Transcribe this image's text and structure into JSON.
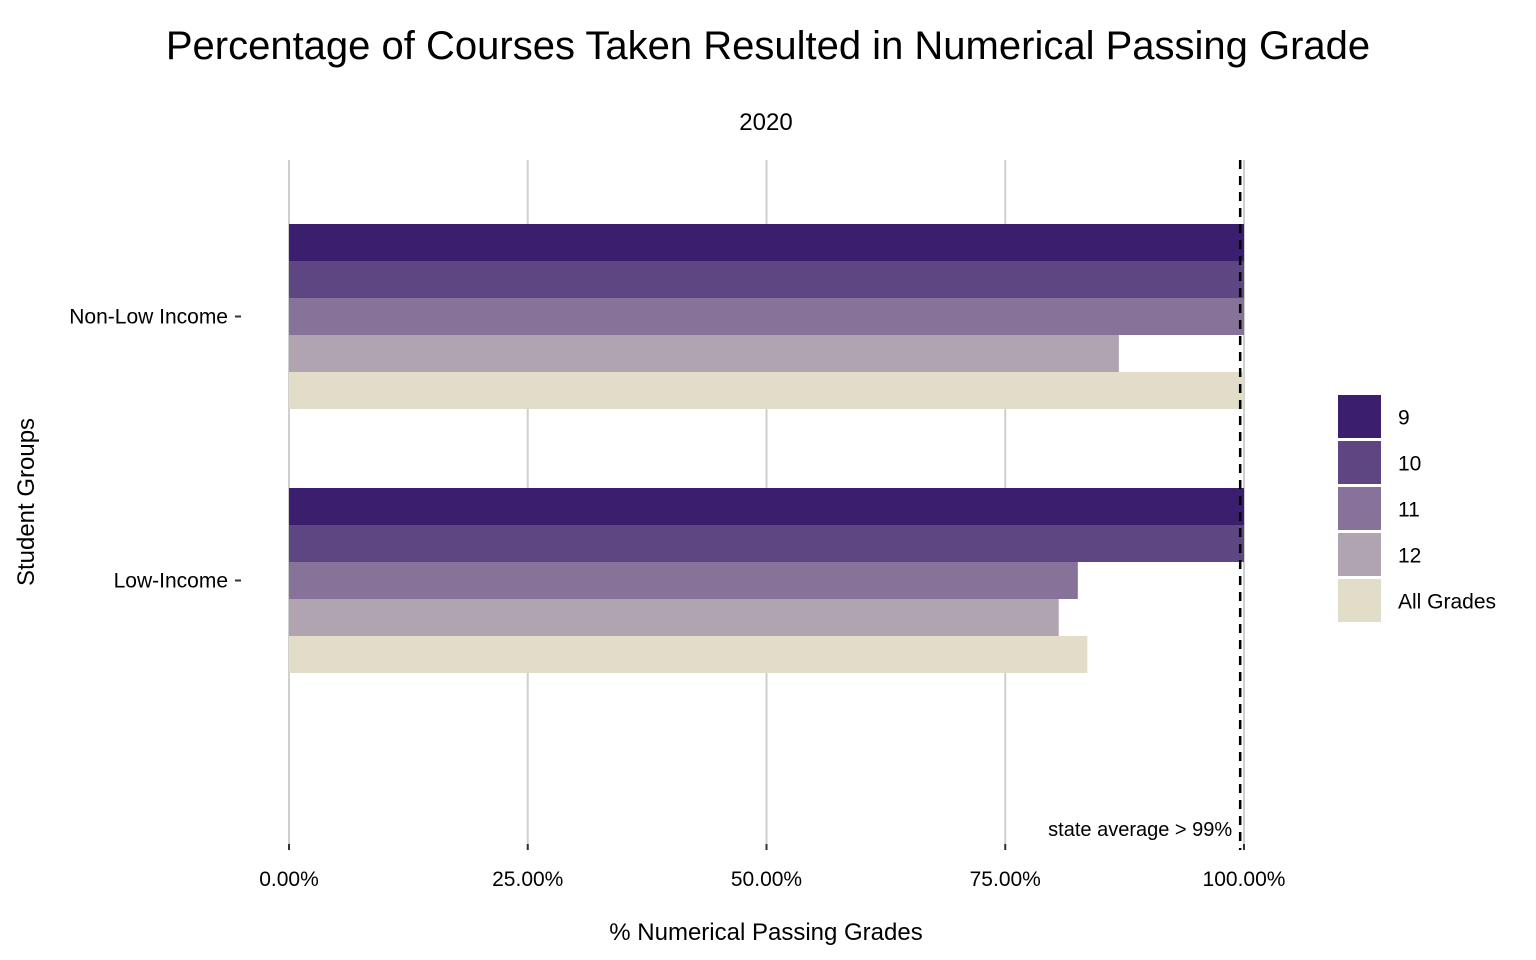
{
  "chart_data": {
    "type": "bar",
    "orientation": "horizontal",
    "title": "Percentage of Courses Taken Resulted in Numerical Passing Grade",
    "subtitle": "2020",
    "xlabel": "% Numerical Passing Grades",
    "ylabel": "Student Groups",
    "xlim": [
      0,
      1
    ],
    "x_ticks": [
      0,
      0.25,
      0.5,
      0.75,
      1.0
    ],
    "x_tick_labels": [
      "0.00%",
      "25.00%",
      "50.00%",
      "75.00%",
      "100.00%"
    ],
    "categories": [
      "Non-Low Income",
      "Low-Income"
    ],
    "series": [
      {
        "name": "9",
        "color": "#3b1f6e",
        "values": [
          1.0,
          1.0
        ]
      },
      {
        "name": "10",
        "color": "#5e4683",
        "values": [
          1.0,
          1.0
        ]
      },
      {
        "name": "11",
        "color": "#87739a",
        "values": [
          1.0,
          0.826
        ]
      },
      {
        "name": "12",
        "color": "#b1a4b1",
        "values": [
          0.869,
          0.806
        ]
      },
      {
        "name": "All Grades",
        "color": "#e1ddc9",
        "values": [
          1.0,
          0.836
        ]
      }
    ],
    "reference_line": {
      "value": 0.996,
      "style": "dashed",
      "label": "state average > 99%"
    },
    "grid": "vertical-major",
    "legend_position": "right"
  }
}
